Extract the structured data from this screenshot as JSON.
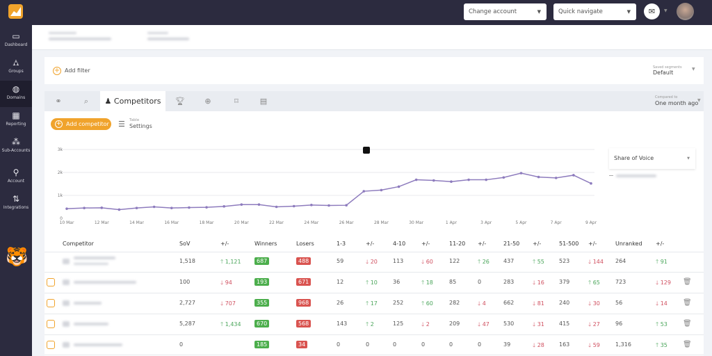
{
  "sidebar": {
    "items": [
      {
        "label": "Dashboard",
        "icon": "monitor-icon"
      },
      {
        "label": "Groups",
        "icon": "hierarchy-icon"
      },
      {
        "label": "Domains",
        "icon": "globe-icon",
        "active": true
      },
      {
        "label": "Reporting",
        "icon": "report-icon"
      },
      {
        "label": "Sub-Accounts",
        "icon": "sub-accounts-icon"
      },
      {
        "label": "Account",
        "icon": "wrench-icon"
      },
      {
        "label": "Integrations",
        "icon": "integrations-icon"
      }
    ]
  },
  "topbar": {
    "change_account": "Change account",
    "quick_navigate": "Quick navigate"
  },
  "filter": {
    "add_filter": "Add filter",
    "saved_segments_label": "Saved segments",
    "saved_segments_value": "Default"
  },
  "tabs": {
    "active_label": "Competitors",
    "compared_to_label": "Compared to",
    "compared_to_value": "One month ago"
  },
  "toolbar": {
    "add_competitor": "Add competitor",
    "table_label": "Table",
    "settings": "Settings"
  },
  "chart_selector": "Share of Voice",
  "colors": {
    "accent": "#f0a32c",
    "line": "#8d7bbd",
    "up": "#4aa55a",
    "down": "#d05060",
    "winners": "#4cae4c",
    "losers": "#d9534f",
    "sidebar": "#2c2b3f"
  },
  "chart_data": {
    "type": "line",
    "ylim": [
      0,
      3000
    ],
    "yticks": [
      "0",
      "1k",
      "2k",
      "3k"
    ],
    "grid": true,
    "x": [
      "10 Mar",
      "11 Mar",
      "12 Mar",
      "13 Mar",
      "14 Mar",
      "15 Mar",
      "16 Mar",
      "17 Mar",
      "18 Mar",
      "19 Mar",
      "20 Mar",
      "21 Mar",
      "22 Mar",
      "23 Mar",
      "24 Mar",
      "25 Mar",
      "26 Mar",
      "27 Mar",
      "28 Mar",
      "29 Mar",
      "30 Mar",
      "31 Mar",
      "1 Apr",
      "2 Apr",
      "3 Apr",
      "4 Apr",
      "5 Apr",
      "6 Apr",
      "7 Apr",
      "8 Apr",
      "9 Apr"
    ],
    "xtick_labels": [
      "10 Mar",
      "12 Mar",
      "14 Mar",
      "16 Mar",
      "18 Mar",
      "20 Mar",
      "22 Mar",
      "24 Mar",
      "26 Mar",
      "28 Mar",
      "30 Mar",
      "1 Apr",
      "3 Apr",
      "5 Apr",
      "7 Apr",
      "9 Apr"
    ],
    "values": [
      420,
      450,
      460,
      380,
      450,
      500,
      450,
      470,
      480,
      520,
      600,
      600,
      500,
      530,
      580,
      560,
      570,
      1180,
      1230,
      1380,
      1680,
      1650,
      1600,
      1680,
      1680,
      1780,
      1970,
      1800,
      1760,
      1880,
      1520
    ]
  },
  "table": {
    "headers": [
      "Competitor",
      "SoV",
      "+/-",
      "Winners",
      "Losers",
      "1-3",
      "+/-",
      "4-10",
      "+/-",
      "11-20",
      "+/-",
      "21-50",
      "+/-",
      "51-500",
      "+/-",
      "Unranked",
      "+/-"
    ],
    "rows": [
      {
        "own": true,
        "sov": "1,518",
        "sov_d": {
          "dir": "up",
          "v": "1,121"
        },
        "winners": "687",
        "losers": "488",
        "r1": "59",
        "r1_d": {
          "dir": "down",
          "v": "20"
        },
        "r2": "113",
        "r2_d": {
          "dir": "down",
          "v": "60"
        },
        "r3": "122",
        "r3_d": {
          "dir": "up",
          "v": "26"
        },
        "r4": "437",
        "r4_d": {
          "dir": "up",
          "v": "55"
        },
        "r5": "523",
        "r5_d": {
          "dir": "down",
          "v": "144"
        },
        "un": "264",
        "un_d": {
          "dir": "up",
          "v": "91"
        }
      },
      {
        "sov": "100",
        "sov_d": {
          "dir": "down",
          "v": "94"
        },
        "winners": "193",
        "losers": "671",
        "r1": "12",
        "r1_d": {
          "dir": "up",
          "v": "10"
        },
        "r2": "36",
        "r2_d": {
          "dir": "up",
          "v": "18"
        },
        "r3": "85",
        "r3_d": {
          "dir": "none",
          "v": "0"
        },
        "r4": "283",
        "r4_d": {
          "dir": "down",
          "v": "16"
        },
        "r5": "379",
        "r5_d": {
          "dir": "up",
          "v": "65"
        },
        "un": "723",
        "un_d": {
          "dir": "down",
          "v": "129"
        }
      },
      {
        "sov": "2,727",
        "sov_d": {
          "dir": "down",
          "v": "707"
        },
        "winners": "355",
        "losers": "968",
        "r1": "26",
        "r1_d": {
          "dir": "up",
          "v": "17"
        },
        "r2": "252",
        "r2_d": {
          "dir": "up",
          "v": "60"
        },
        "r3": "282",
        "r3_d": {
          "dir": "down",
          "v": "4"
        },
        "r4": "662",
        "r4_d": {
          "dir": "down",
          "v": "81"
        },
        "r5": "240",
        "r5_d": {
          "dir": "down",
          "v": "30"
        },
        "un": "56",
        "un_d": {
          "dir": "down",
          "v": "14"
        }
      },
      {
        "sov": "5,287",
        "sov_d": {
          "dir": "up",
          "v": "1,434"
        },
        "winners": "670",
        "losers": "568",
        "r1": "143",
        "r1_d": {
          "dir": "up",
          "v": "2"
        },
        "r2": "125",
        "r2_d": {
          "dir": "down",
          "v": "2"
        },
        "r3": "209",
        "r3_d": {
          "dir": "down",
          "v": "47"
        },
        "r4": "530",
        "r4_d": {
          "dir": "down",
          "v": "31"
        },
        "r5": "415",
        "r5_d": {
          "dir": "down",
          "v": "27"
        },
        "un": "96",
        "un_d": {
          "dir": "up",
          "v": "53"
        }
      },
      {
        "sov": "0",
        "sov_d": null,
        "winners": "185",
        "losers": "34",
        "r1": "0",
        "r1_d": {
          "dir": "none",
          "v": "0"
        },
        "r2": "0",
        "r2_d": {
          "dir": "none",
          "v": "0"
        },
        "r3": "0",
        "r3_d": {
          "dir": "none",
          "v": "0"
        },
        "r4": "39",
        "r4_d": {
          "dir": "down",
          "v": "28"
        },
        "r5": "163",
        "r5_d": {
          "dir": "down",
          "v": "59"
        },
        "un": "1,316",
        "un_d": {
          "dir": "up",
          "v": "35"
        }
      }
    ]
  }
}
